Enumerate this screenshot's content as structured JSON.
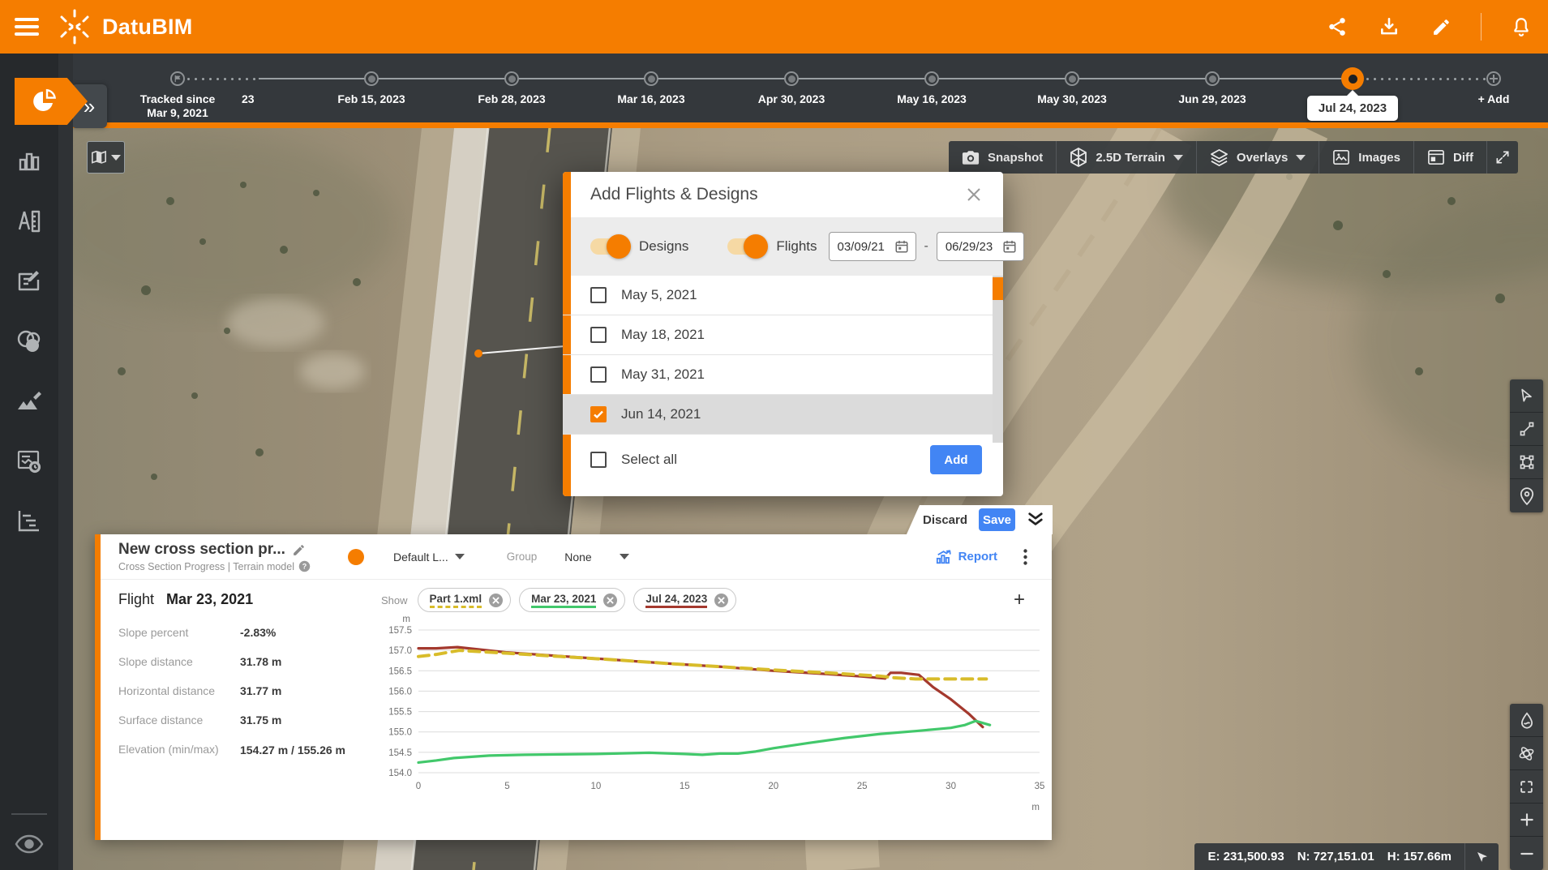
{
  "header": {
    "app_name": "DatuBIM",
    "accent_color": "#F57D00"
  },
  "timeline": {
    "tracked_since_line1": "Tracked since",
    "tracked_since_line2": "Mar 9, 2021",
    "truncated_label": "23",
    "nodes": [
      "Feb 15, 2023",
      "Feb 28, 2023",
      "Mar 16, 2023",
      "Apr 30, 2023",
      "May 16, 2023",
      "May 30, 2023",
      "Jun 29, 2023"
    ],
    "selected_date": "Jul 24, 2023",
    "add_label": "+ Add"
  },
  "map_toolbar": {
    "snapshot": "Snapshot",
    "terrain_mode": "2.5D Terrain",
    "overlays": "Overlays",
    "images": "Images",
    "diff": "Diff"
  },
  "modal": {
    "title": "Add Flights & Designs",
    "designs_toggle": "Designs",
    "flights_toggle": "Flights",
    "date_from": "03/09/21",
    "date_separator": "-",
    "date_to": "06/29/23",
    "flights": [
      {
        "label": "May 5, 2021",
        "checked": false
      },
      {
        "label": "May 18, 2021",
        "checked": false
      },
      {
        "label": "May 31, 2021",
        "checked": false
      },
      {
        "label": "Jun 14, 2021",
        "checked": true
      }
    ],
    "select_all_label": "Select all",
    "add_button": "Add"
  },
  "panel": {
    "discard_label": "Discard",
    "save_label": "Save",
    "title": "New cross section pr...",
    "subtitle": "Cross Section Progress | Terrain model",
    "layer_selector": "Default L...",
    "group_label": "Group",
    "group_value": "None",
    "report_label": "Report",
    "flight_label": "Flight",
    "flight_date": "Mar 23, 2021",
    "stats": [
      {
        "label": "Slope percent",
        "value": "-2.83%"
      },
      {
        "label": "Slope distance",
        "value": "31.78 m"
      },
      {
        "label": "Horizontal distance",
        "value": "31.77 m"
      },
      {
        "label": "Surface distance",
        "value": "31.75 m"
      },
      {
        "label": "Elevation (min/max)",
        "value": "154.27 m / 155.26 m"
      }
    ],
    "show_label": "Show",
    "add_chip": "+",
    "chips": [
      {
        "label": "Part 1.xml",
        "color": "#D8BC2A",
        "dashed": true
      },
      {
        "label": "Mar 23, 2021",
        "color": "#42C86B",
        "dashed": false
      },
      {
        "label": "Jul 24, 2023",
        "color": "#A4392E",
        "dashed": false
      }
    ]
  },
  "statusbar": {
    "easting": "E: 231,500.93",
    "northing": "N: 727,151.01",
    "height": "H: 157.66m"
  },
  "chart_data": {
    "type": "line",
    "title": "",
    "xlabel": "m",
    "ylabel": "m",
    "xlim": [
      0,
      35
    ],
    "ylim": [
      154.0,
      157.5
    ],
    "x_tick_step": 5,
    "y_tick_step": 0.5,
    "grid": true,
    "legend_position": "chips-above-chart",
    "series": [
      {
        "name": "Jul 24, 2023",
        "color": "#A4392E",
        "dashed": false,
        "x": [
          0,
          1,
          2.2,
          5,
          8,
          11,
          14,
          17,
          20,
          23,
          25,
          26.3,
          26.6,
          27.2,
          28.2,
          29,
          30,
          31,
          31.8
        ],
        "y": [
          157.05,
          157.05,
          157.08,
          156.95,
          156.86,
          156.77,
          156.68,
          156.6,
          156.5,
          156.42,
          156.36,
          156.31,
          156.45,
          156.45,
          156.4,
          156.1,
          155.8,
          155.45,
          155.12
        ]
      },
      {
        "name": "Part 1.xml",
        "color": "#D8BC2A",
        "dashed": true,
        "x": [
          0,
          1,
          2.3,
          5,
          8,
          11,
          14,
          17,
          20,
          23,
          26,
          26.8,
          28,
          30,
          32
        ],
        "y": [
          156.85,
          156.9,
          157.0,
          156.93,
          156.85,
          156.77,
          156.68,
          156.6,
          156.52,
          156.45,
          156.37,
          156.33,
          156.3,
          156.3,
          156.3
        ]
      },
      {
        "name": "Mar 23, 2021",
        "color": "#42C86B",
        "dashed": false,
        "x": [
          0,
          1,
          2,
          4,
          6,
          8,
          10,
          12,
          13,
          15,
          16,
          17,
          18,
          19,
          20,
          22,
          24,
          26,
          28,
          29,
          30,
          30.8,
          31.4,
          31.8,
          32.2
        ],
        "y": [
          154.25,
          154.3,
          154.36,
          154.42,
          154.44,
          154.45,
          154.46,
          154.48,
          154.49,
          154.46,
          154.44,
          154.47,
          154.47,
          154.52,
          154.6,
          154.73,
          154.85,
          154.95,
          155.02,
          155.06,
          155.1,
          155.17,
          155.27,
          155.22,
          155.17
        ]
      }
    ]
  }
}
